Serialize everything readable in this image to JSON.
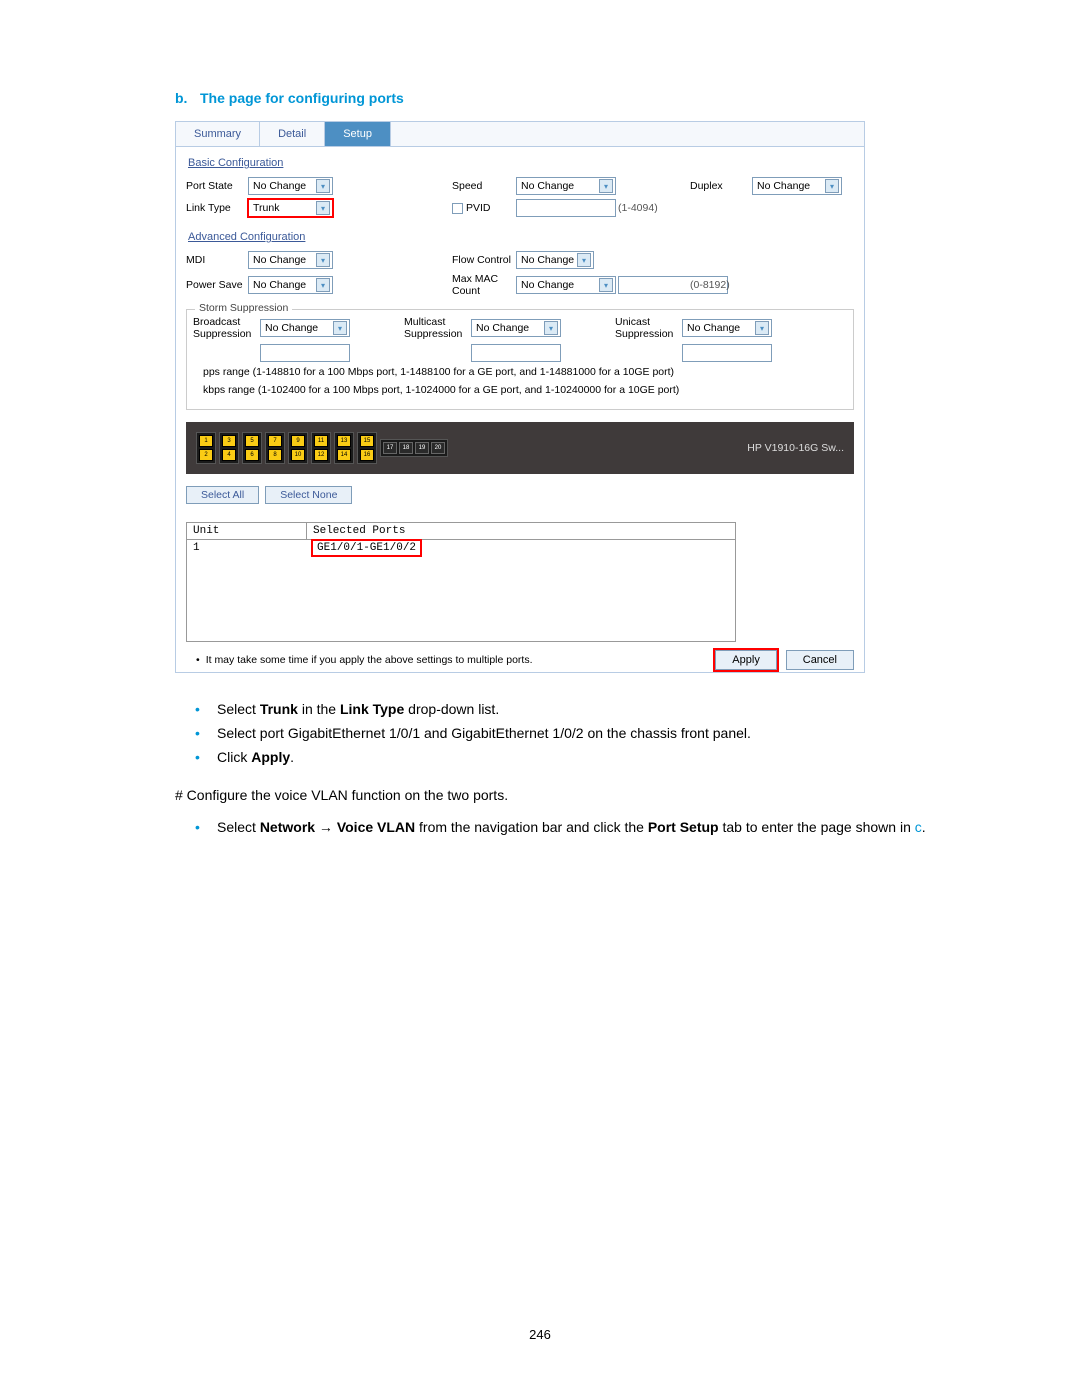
{
  "heading": {
    "letter": "b.",
    "text": "The page for configuring ports"
  },
  "tabs": [
    "Summary",
    "Detail",
    "Setup"
  ],
  "activeTab": 2,
  "sections": {
    "basic": "Basic Configuration",
    "advanced": "Advanced Configuration",
    "storm": "Storm Suppression"
  },
  "labels": {
    "portState": "Port State",
    "speed": "Speed",
    "duplex": "Duplex",
    "linkType": "Link Type",
    "pvid": "PVID",
    "pvidRange": "(1-4094)",
    "mdi": "MDI",
    "flowControl": "Flow Control",
    "powerSave": "Power Save",
    "maxMac": "Max MAC Count",
    "maxMacRange": "(0-8192)",
    "broadcast": "Broadcast Suppression",
    "multicast": "Multicast Suppression",
    "unicast": "Unicast Suppression"
  },
  "values": {
    "portState": "No Change",
    "speed": "No Change",
    "duplex": "No Change",
    "linkType": "Trunk",
    "mdi": "No Change",
    "flowControl": "No Change",
    "powerSave": "No Change",
    "maxMac": "No Change",
    "broadcast": "No Change",
    "multicast": "No Change",
    "unicast": "No Change"
  },
  "notes": {
    "pps": "pps range (1-148810 for a 100 Mbps port, 1-1488100 for a GE port, and 1-14881000 for a 10GE port)",
    "kbps": "kbps range (1-102400 for a 100 Mbps port, 1-1024000 for a GE port, and 1-10240000 for a 10GE port)"
  },
  "chassis": {
    "label": "HP V1910-16G Sw...",
    "yellowPorts": [
      "1",
      "2",
      "3",
      "4",
      "5",
      "6",
      "7",
      "8",
      "9",
      "10",
      "11",
      "12",
      "13",
      "14",
      "15",
      "16"
    ],
    "darkPorts": [
      "17",
      "18",
      "19",
      "20"
    ]
  },
  "selectButtons": {
    "all": "Select All",
    "none": "Select None"
  },
  "selectedTable": {
    "headers": [
      "Unit",
      "Selected Ports"
    ],
    "row": [
      "1",
      "GE1/0/1-GE1/0/2"
    ]
  },
  "footerNote": "It may take some time if you apply the above settings to multiple ports.",
  "actionButtons": {
    "apply": "Apply",
    "cancel": "Cancel"
  },
  "docBullets1": [
    "Select <b>Trunk</b> in the <b>Link Type</b> drop-down list.",
    "Select port GigabitEthernet 1/0/1 and GigabitEthernet 1/0/2 on the chassis front panel.",
    "Click <b>Apply</b>."
  ],
  "docLine": "# Configure the voice VLAN function on the two ports.",
  "docBullets2": [
    "Select <b>Network</b> → <b>Voice VLAN</b> from the navigation bar and click the <b>Port Setup</b> tab to enter the page shown in <span style='color:#0096d6'>c</span>."
  ],
  "pageNumber": "246"
}
